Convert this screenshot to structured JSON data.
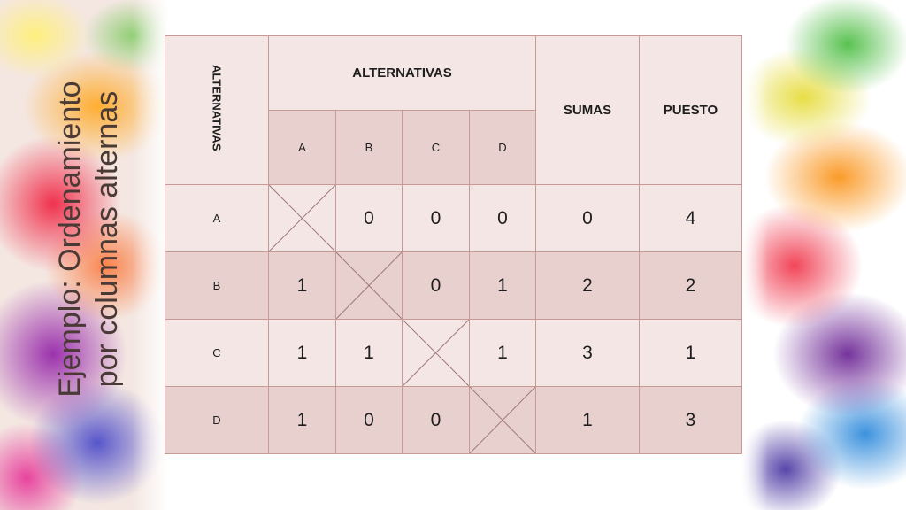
{
  "slide": {
    "title_line1": "Ejemplo: Ordenamiento",
    "title_line2": "por columnas alternas"
  },
  "table": {
    "corner_header": "ALTERNATIVAS",
    "group_header": "ALTERNATIVAS",
    "sums_header": "SUMAS",
    "rank_header": "PUESTO",
    "column_labels": [
      "A",
      "B",
      "C",
      "D"
    ],
    "rows": [
      {
        "label": "A",
        "cells": [
          "",
          "0",
          "0",
          "0"
        ],
        "suma": "0",
        "puesto": "4"
      },
      {
        "label": "B",
        "cells": [
          "1",
          "",
          "0",
          "1"
        ],
        "suma": "2",
        "puesto": "2"
      },
      {
        "label": "C",
        "cells": [
          "1",
          "1",
          "",
          "1"
        ],
        "suma": "3",
        "puesto": "1"
      },
      {
        "label": "D",
        "cells": [
          "1",
          "0",
          "0",
          ""
        ],
        "suma": "1",
        "puesto": "3"
      }
    ]
  },
  "colors": {
    "light_cell": "#f3e6e5",
    "dark_cell": "#e8d0cf",
    "border": "#c89a96",
    "title_text": "#4a3a36"
  }
}
